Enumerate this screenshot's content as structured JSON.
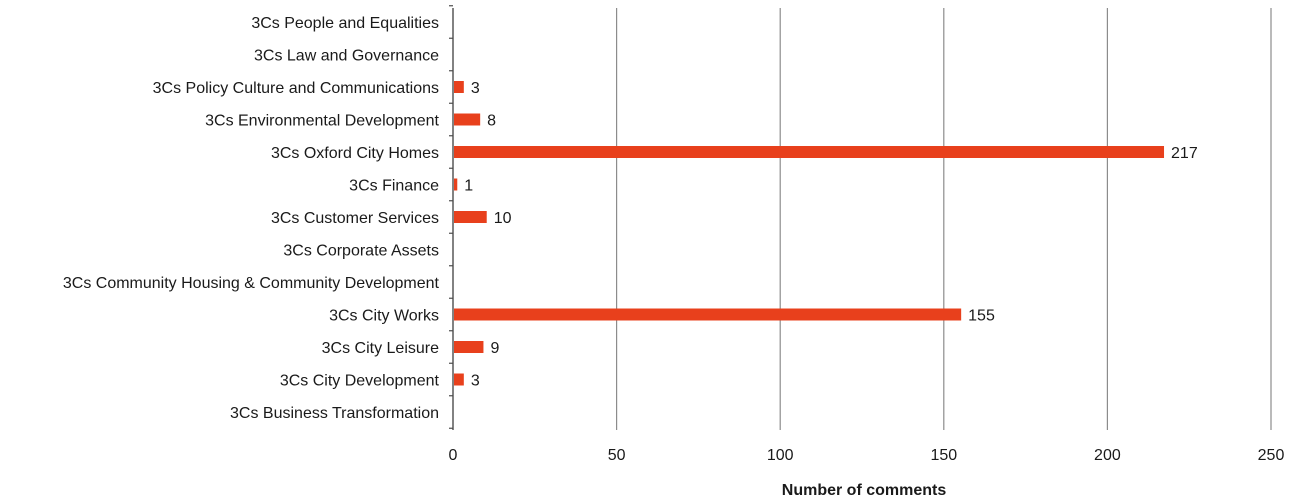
{
  "chart_data": {
    "type": "bar",
    "orientation": "horizontal",
    "title": "",
    "xlabel": "Number of comments",
    "ylabel": "",
    "xlim": [
      0,
      250
    ],
    "xticks": [
      0,
      50,
      100,
      150,
      200,
      250
    ],
    "tick_labels": [
      "0",
      "50",
      "100",
      "150",
      "200",
      "250"
    ],
    "grid": "vertical gridlines at major ticks",
    "legend": "none",
    "bar_color": "#e8401c",
    "gridline_color": "#8c8c8c",
    "categories": [
      "3Cs People and Equalities",
      "3Cs Law and Governance",
      "3Cs Policy Culture and Communications",
      "3Cs Environmental Development",
      "3Cs Oxford City Homes",
      "3Cs Finance",
      "3Cs Customer Services",
      "3Cs Corporate Assets",
      "3Cs Community Housing & Community Development",
      "3Cs City Works",
      "3Cs City Leisure",
      "3Cs City Development",
      "3Cs Business Transformation"
    ],
    "values": [
      0,
      0,
      3,
      8,
      217,
      1,
      10,
      0,
      0,
      155,
      9,
      3,
      0
    ],
    "data_labels": [
      "",
      "",
      "3",
      "8",
      "217",
      "1",
      "10",
      "",
      "",
      "155",
      "9",
      "3",
      ""
    ]
  }
}
